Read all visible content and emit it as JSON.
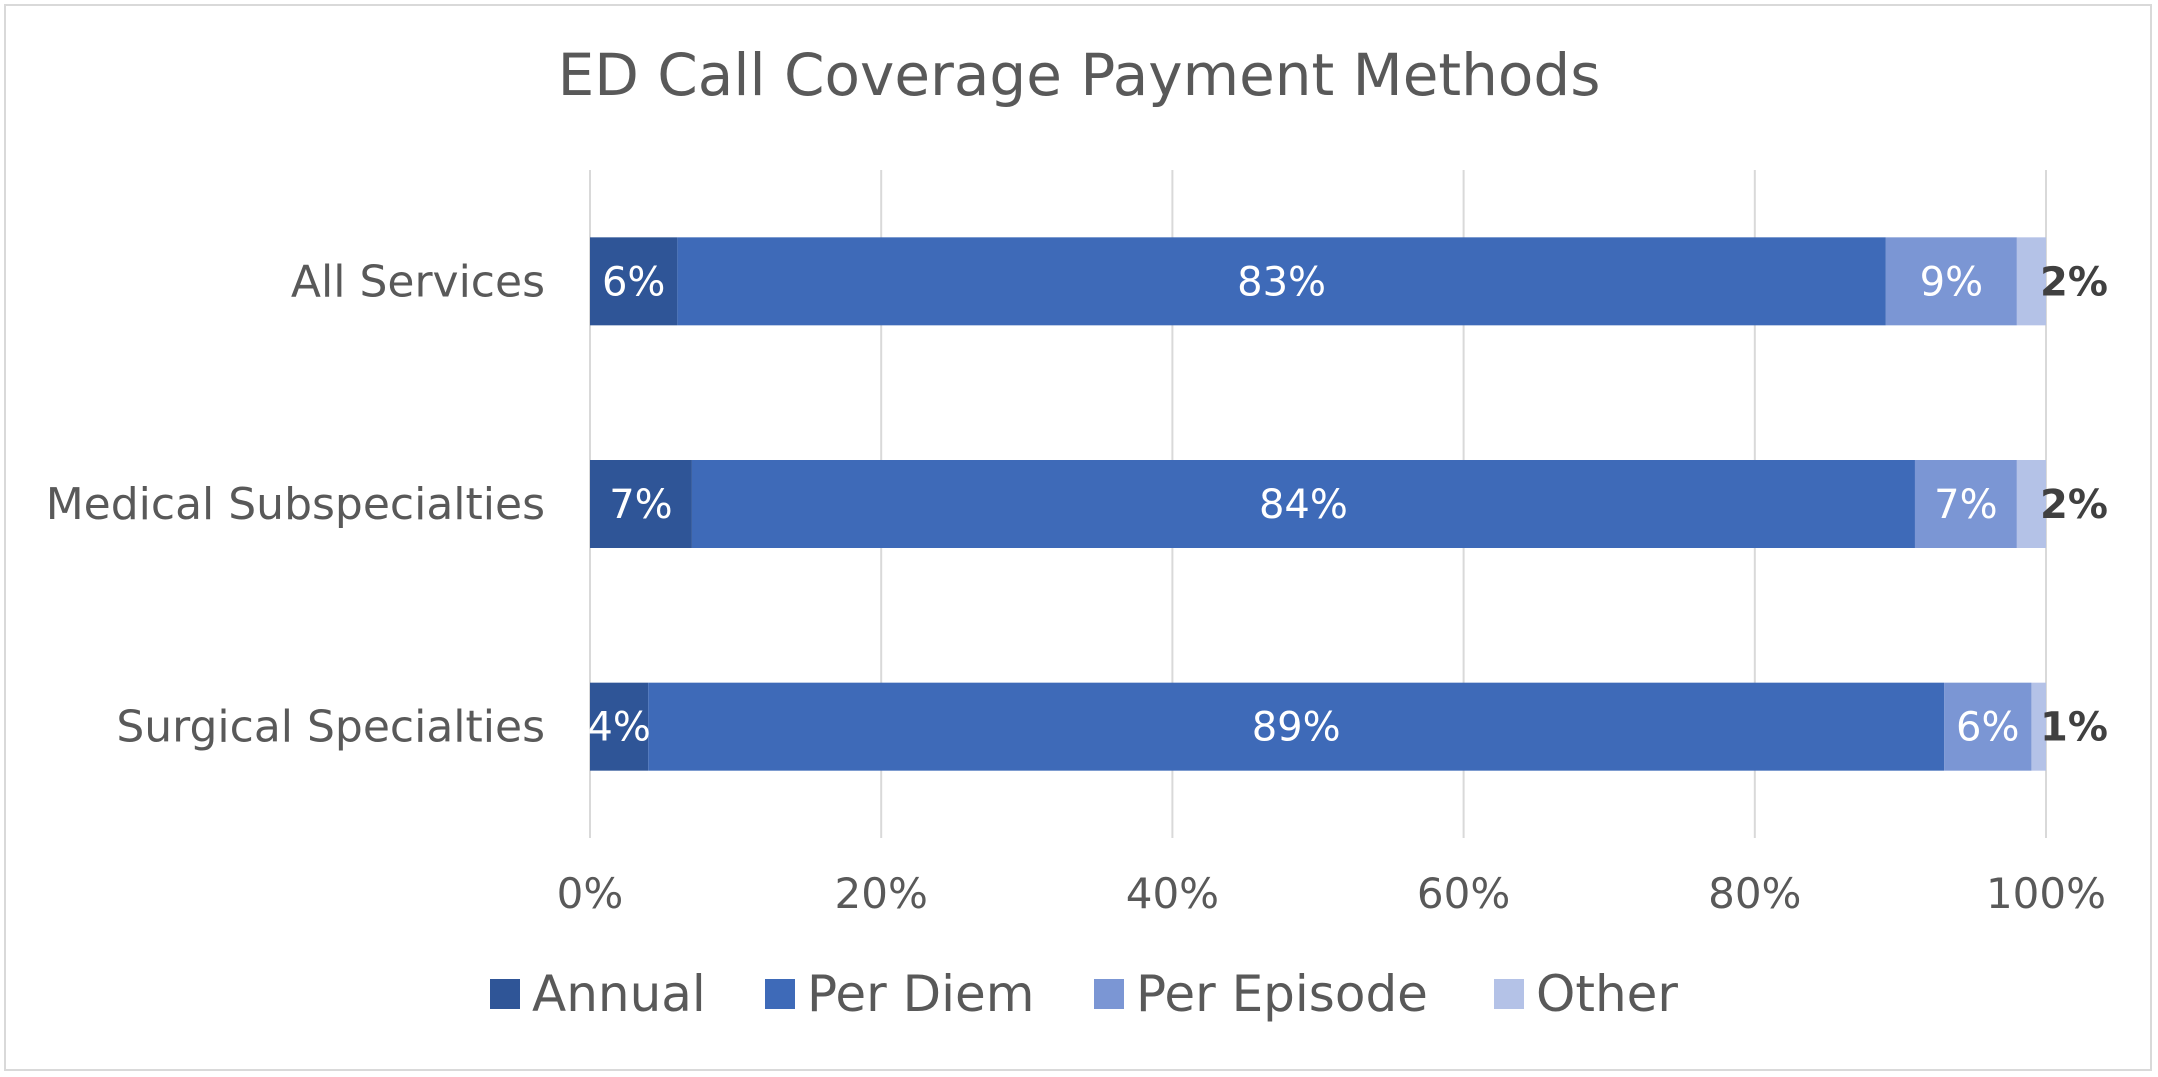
{
  "chart_data": {
    "type": "bar",
    "orientation": "horizontal",
    "stacked": "percent",
    "title": "ED Call Coverage Payment Methods",
    "categories": [
      "All Services",
      "Medical Subspecialties",
      "Surgical Specialties"
    ],
    "series": [
      {
        "name": "Annual",
        "values": [
          6,
          7,
          4
        ],
        "labels": [
          "6%",
          "7%",
          "4%"
        ],
        "color": "#2f5597"
      },
      {
        "name": "Per Diem",
        "values": [
          83,
          84,
          89
        ],
        "labels": [
          "83%",
          "84%",
          "89%"
        ],
        "color": "#3e6ab8"
      },
      {
        "name": "Per Episode",
        "values": [
          9,
          7,
          6
        ],
        "labels": [
          "9%",
          "7%",
          "6%"
        ],
        "color": "#7b96d4"
      },
      {
        "name": "Other",
        "values": [
          2,
          2,
          1
        ],
        "labels": [
          "2%",
          "2%",
          "1%"
        ],
        "color": "#b4c2e7"
      }
    ],
    "xlim": [
      0,
      100
    ],
    "xticks": [
      "0%",
      "20%",
      "40%",
      "60%",
      "80%",
      "100%"
    ],
    "grid": true,
    "legend_position": "bottom"
  }
}
